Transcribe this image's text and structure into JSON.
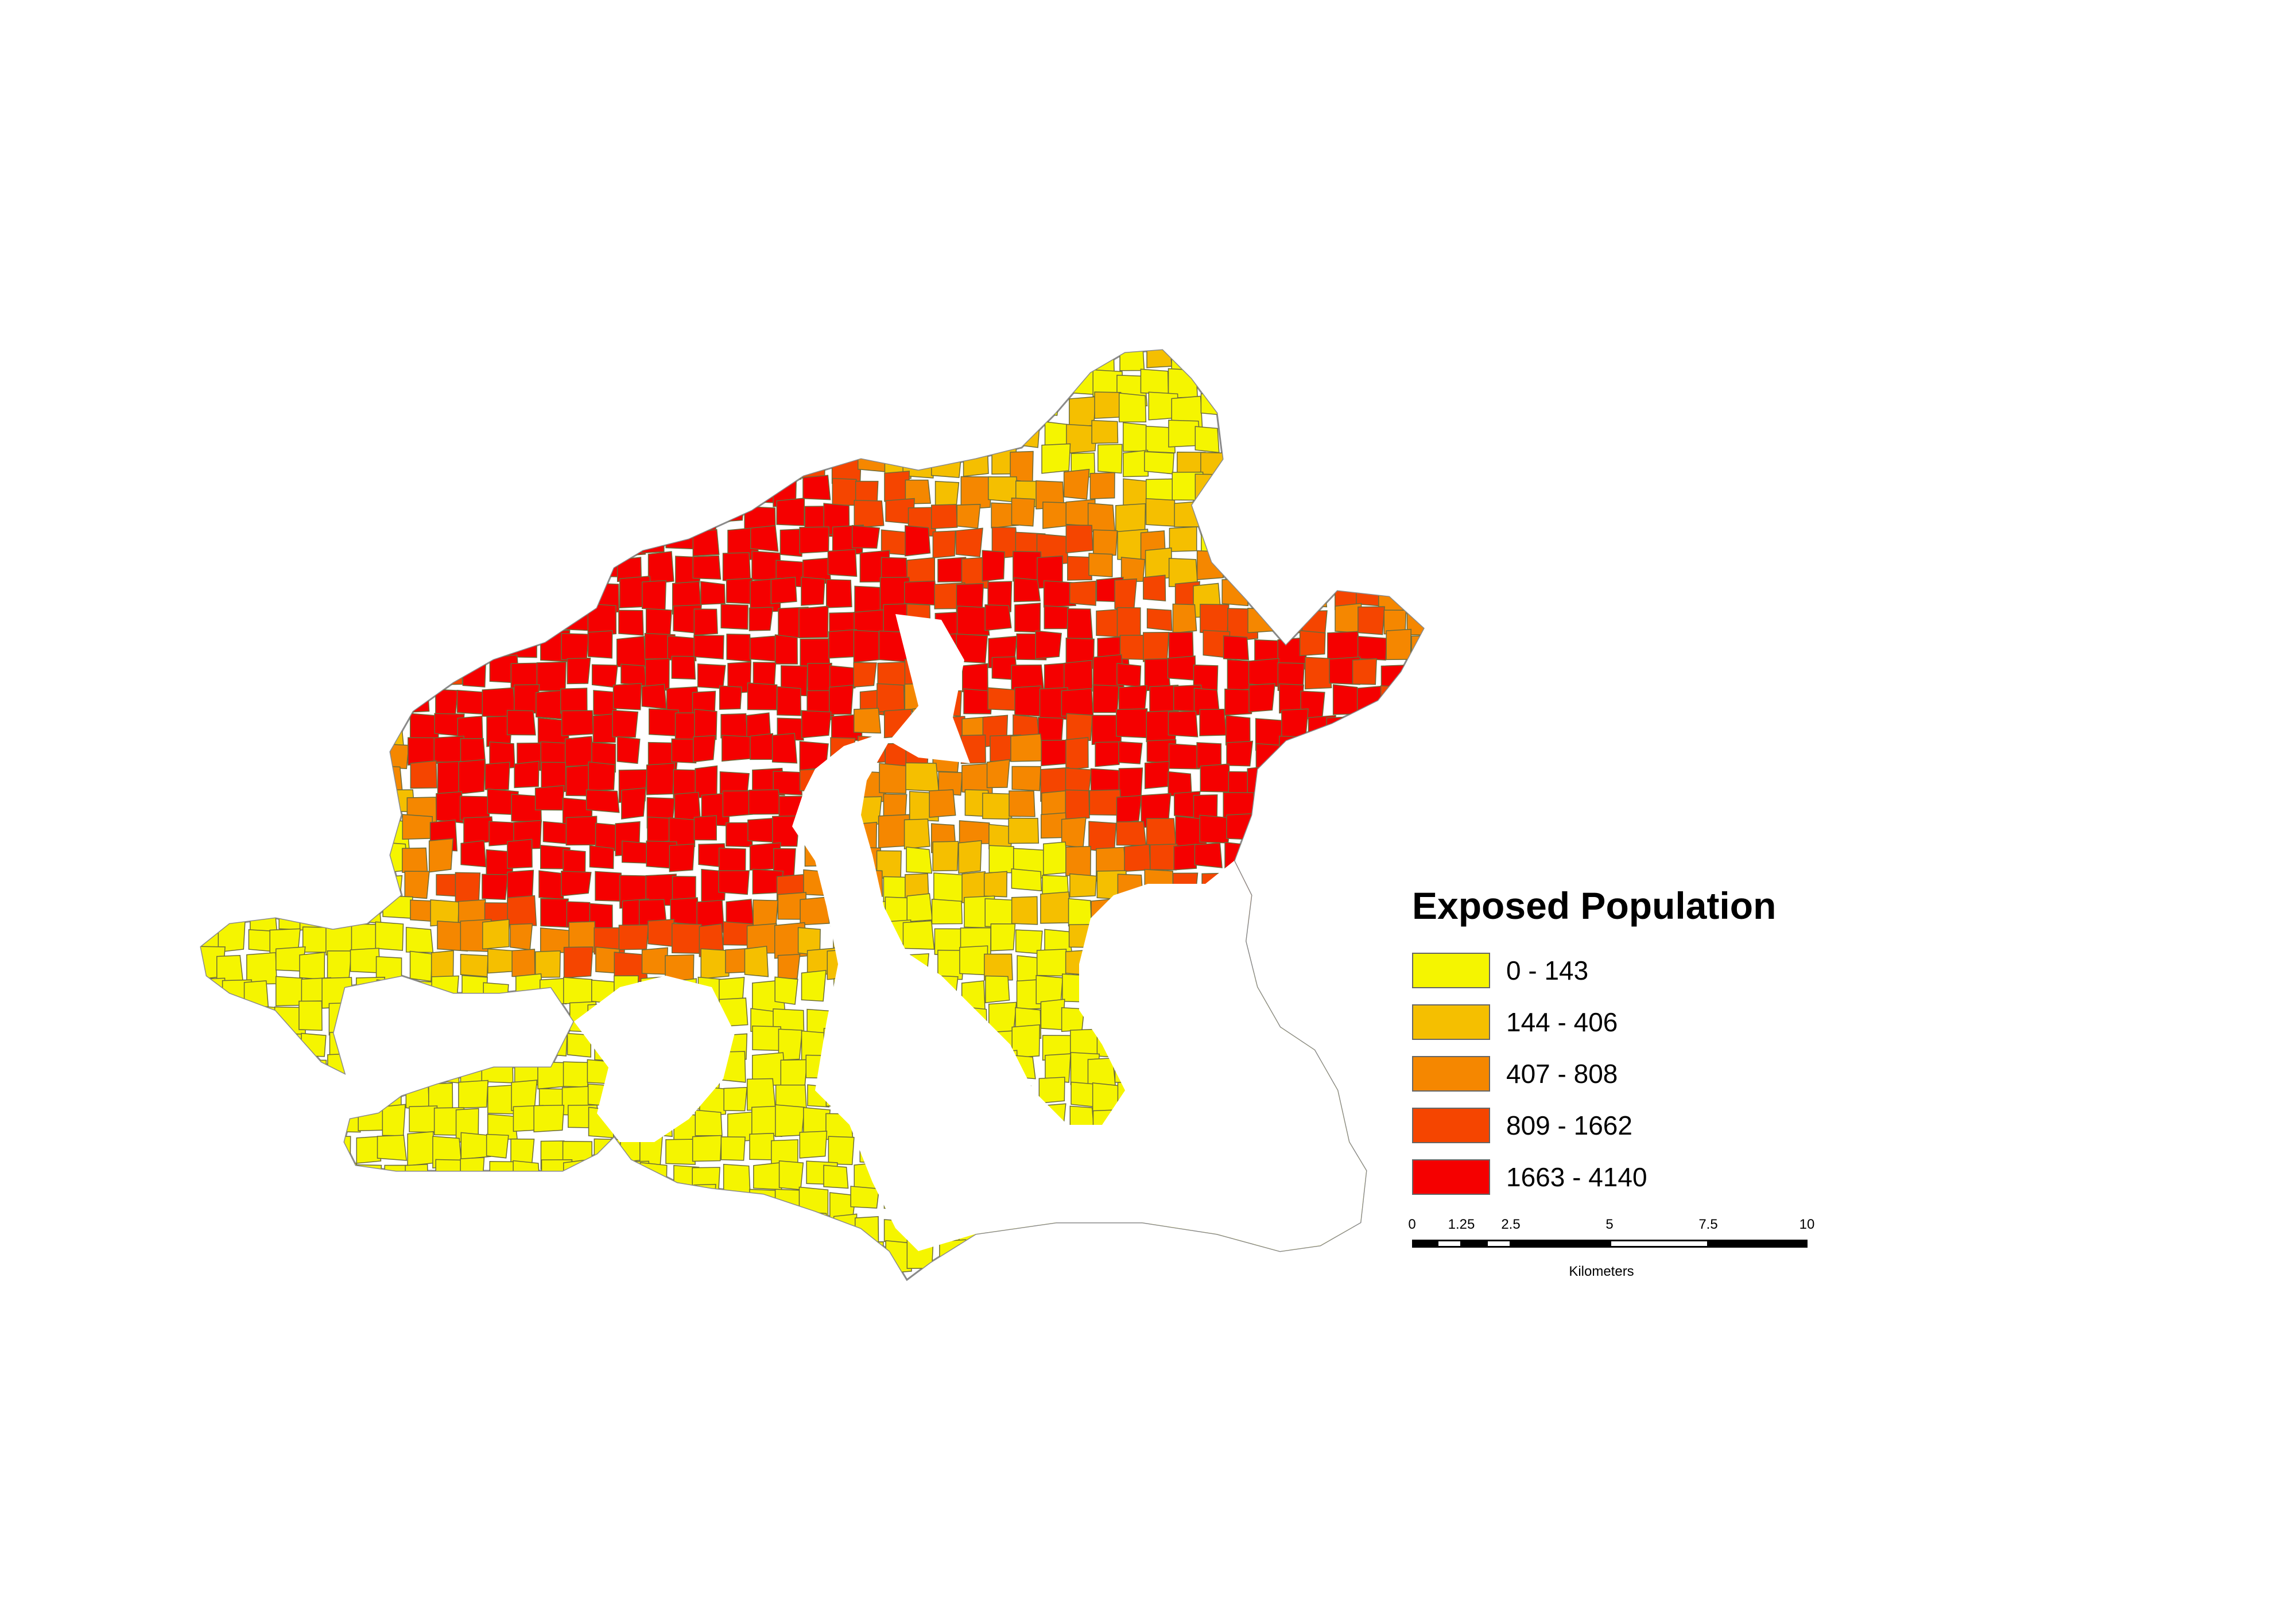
{
  "legend": {
    "title": "Exposed Population",
    "classes": [
      {
        "label": "0 - 143",
        "color": "#f5f500"
      },
      {
        "label": "144 - 406",
        "color": "#f5bf00"
      },
      {
        "label": "407 - 808",
        "color": "#f58700"
      },
      {
        "label": "809 - 1662",
        "color": "#f54500"
      },
      {
        "label": "1663 - 4140",
        "color": "#f50000"
      }
    ]
  },
  "scalebar": {
    "ticks": [
      "0",
      "1.25",
      "2.5",
      "5",
      "7.5",
      "10"
    ],
    "unit": "Kilometers"
  },
  "colors": {
    "boundary": "#8a8a8a",
    "tract_outline": "#6b6b3a",
    "background": "#ffffff"
  }
}
